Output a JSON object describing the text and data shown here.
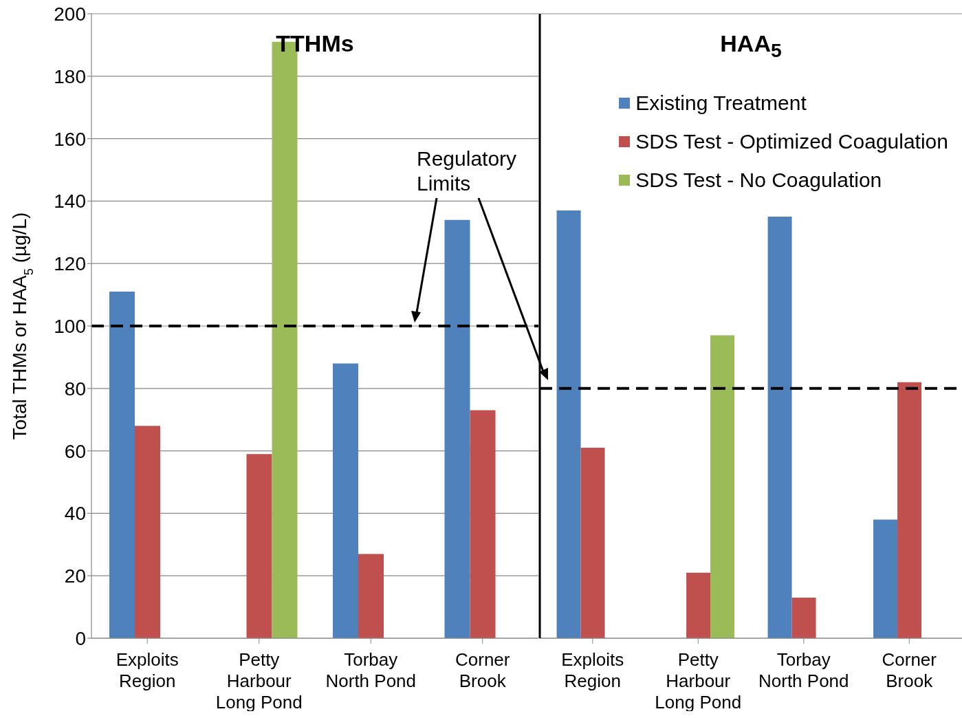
{
  "chart_data": [
    {
      "type": "bar",
      "title": "TTHMs",
      "ylabel": "Total THMs or HAA$_{5}$ (µg/L)",
      "categories": [
        "Exploits Region",
        "Petty Harbour Long Pond",
        "Torbay North Pond",
        "Corner Brook"
      ],
      "series": [
        {
          "color": "#4f81bd",
          "values": [
            111,
            null,
            88,
            134
          ]
        },
        {
          "color": "#c0504d",
          "values": [
            68,
            59,
            27,
            73
          ]
        },
        {
          "color": "#9bbb59",
          "values": [
            null,
            191,
            null,
            null
          ]
        }
      ],
      "ylim": [
        0,
        200
      ],
      "yticks": [
        0,
        20,
        40,
        60,
        80,
        100,
        120,
        140,
        160,
        180,
        200
      ],
      "grid": "y",
      "legend": false,
      "ref_lines": [
        {
          "axis": "y",
          "value": 100,
          "color": "#000000",
          "line_style": "dashed"
        }
      ],
      "annotations": [
        "Regulatory Limits"
      ]
    },
    {
      "type": "bar",
      "title": "HAA$_{5}$",
      "categories": [
        "Exploits Region",
        "Petty Harbour Long Pond",
        "Torbay North Pond",
        "Corner Brook"
      ],
      "series": [
        {
          "name": "Existing Treatment",
          "color": "#4f81bd",
          "values": [
            137,
            null,
            135,
            38
          ]
        },
        {
          "name": "SDS Test - Optimized Coagulation",
          "color": "#c0504d",
          "values": [
            61,
            21,
            13,
            82
          ]
        },
        {
          "name": "SDS Test - No Coagulation",
          "color": "#9bbb59",
          "values": [
            null,
            97,
            null,
            null
          ]
        }
      ],
      "ylim": [
        0,
        200
      ],
      "yticks": [
        0,
        20,
        40,
        60,
        80,
        100,
        120,
        140,
        160,
        180,
        200
      ],
      "grid": "y",
      "tick_labels": "x",
      "legend": "top right",
      "ref_lines": [
        {
          "axis": "y",
          "value": 80,
          "color": "#000000",
          "line_style": "dashed"
        }
      ]
    }
  ]
}
